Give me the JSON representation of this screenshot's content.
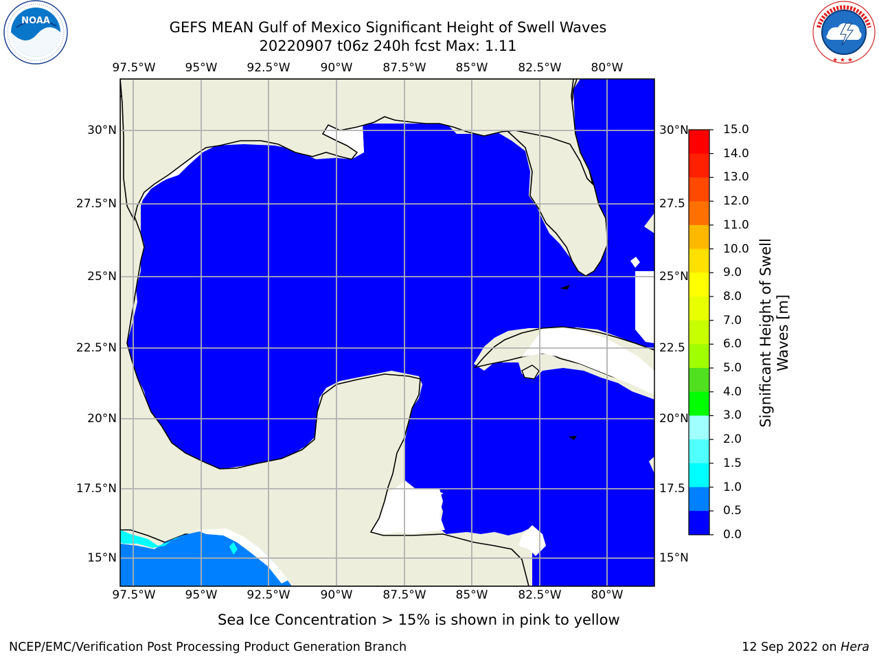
{
  "header": {
    "title_line1": "GEFS MEAN Gulf of Mexico Significant Height of Swell Waves",
    "title_line2": "20220907 t06z 240h fcst   Max: 1.11"
  },
  "logos": {
    "noaa_text": "NOAA",
    "noaa_ring_text": "NATIONAL OCEANIC AND ATMOSPHERIC ADMINISTRATION · U.S. DEPARTMENT OF COMMERCE",
    "nws_ring_text": "NATIONAL WEATHER SERVICE"
  },
  "map": {
    "lon_labels": [
      "97.5°W",
      "95°W",
      "92.5°W",
      "90°W",
      "87.5°W",
      "85°W",
      "82.5°W",
      "80°W"
    ],
    "lat_labels_left": [
      "30°N",
      "27.5°N",
      "25°N",
      "22.5°N",
      "20°N",
      "17.5°N",
      "15°N"
    ],
    "lat_labels_right": [
      "30°N",
      "27.5",
      "25°N",
      "22.5",
      "20°N",
      "17.5",
      "15°N"
    ],
    "colors": {
      "ocean": "#0000ff",
      "land": "#eeeedd",
      "grid": "#b0b0b0",
      "coast": "#000000",
      "swell_0_5": "#0080ff",
      "swell_1_0": "#00ffff"
    }
  },
  "colorbar": {
    "label": "Significant Height of Swell\nWaves [m]",
    "label_line1": "Significant Height of Swell",
    "label_line2": "Waves [m]",
    "ticks": [
      "15.0",
      "14.0",
      "13.0",
      "12.0",
      "11.0",
      "10.0",
      "9.0",
      "8.0",
      "7.0",
      "6.0",
      "5.0",
      "4.0",
      "3.0",
      "2.0",
      "1.5",
      "1.0",
      "0.5",
      "0.0"
    ],
    "colors": [
      "#ff0000",
      "#ff2000",
      "#ff4800",
      "#ff7000",
      "#ff9000",
      "#ffb800",
      "#ffe000",
      "#ffff00",
      "#e8ff00",
      "#c8ff00",
      "#a0ff00",
      "#50e020",
      "#00ff00",
      "#60ff80",
      "#a0ffff",
      "#50ffff",
      "#00ffff",
      "#0080ff",
      "#0000ff"
    ]
  },
  "footer": {
    "note": "Sea Ice Concentration > 15% is shown in pink to yellow",
    "left": "NCEP/EMC/Verification Post Processing Product Generation Branch",
    "right_date": "12 Sep 2022 on ",
    "right_host": "Hera"
  }
}
